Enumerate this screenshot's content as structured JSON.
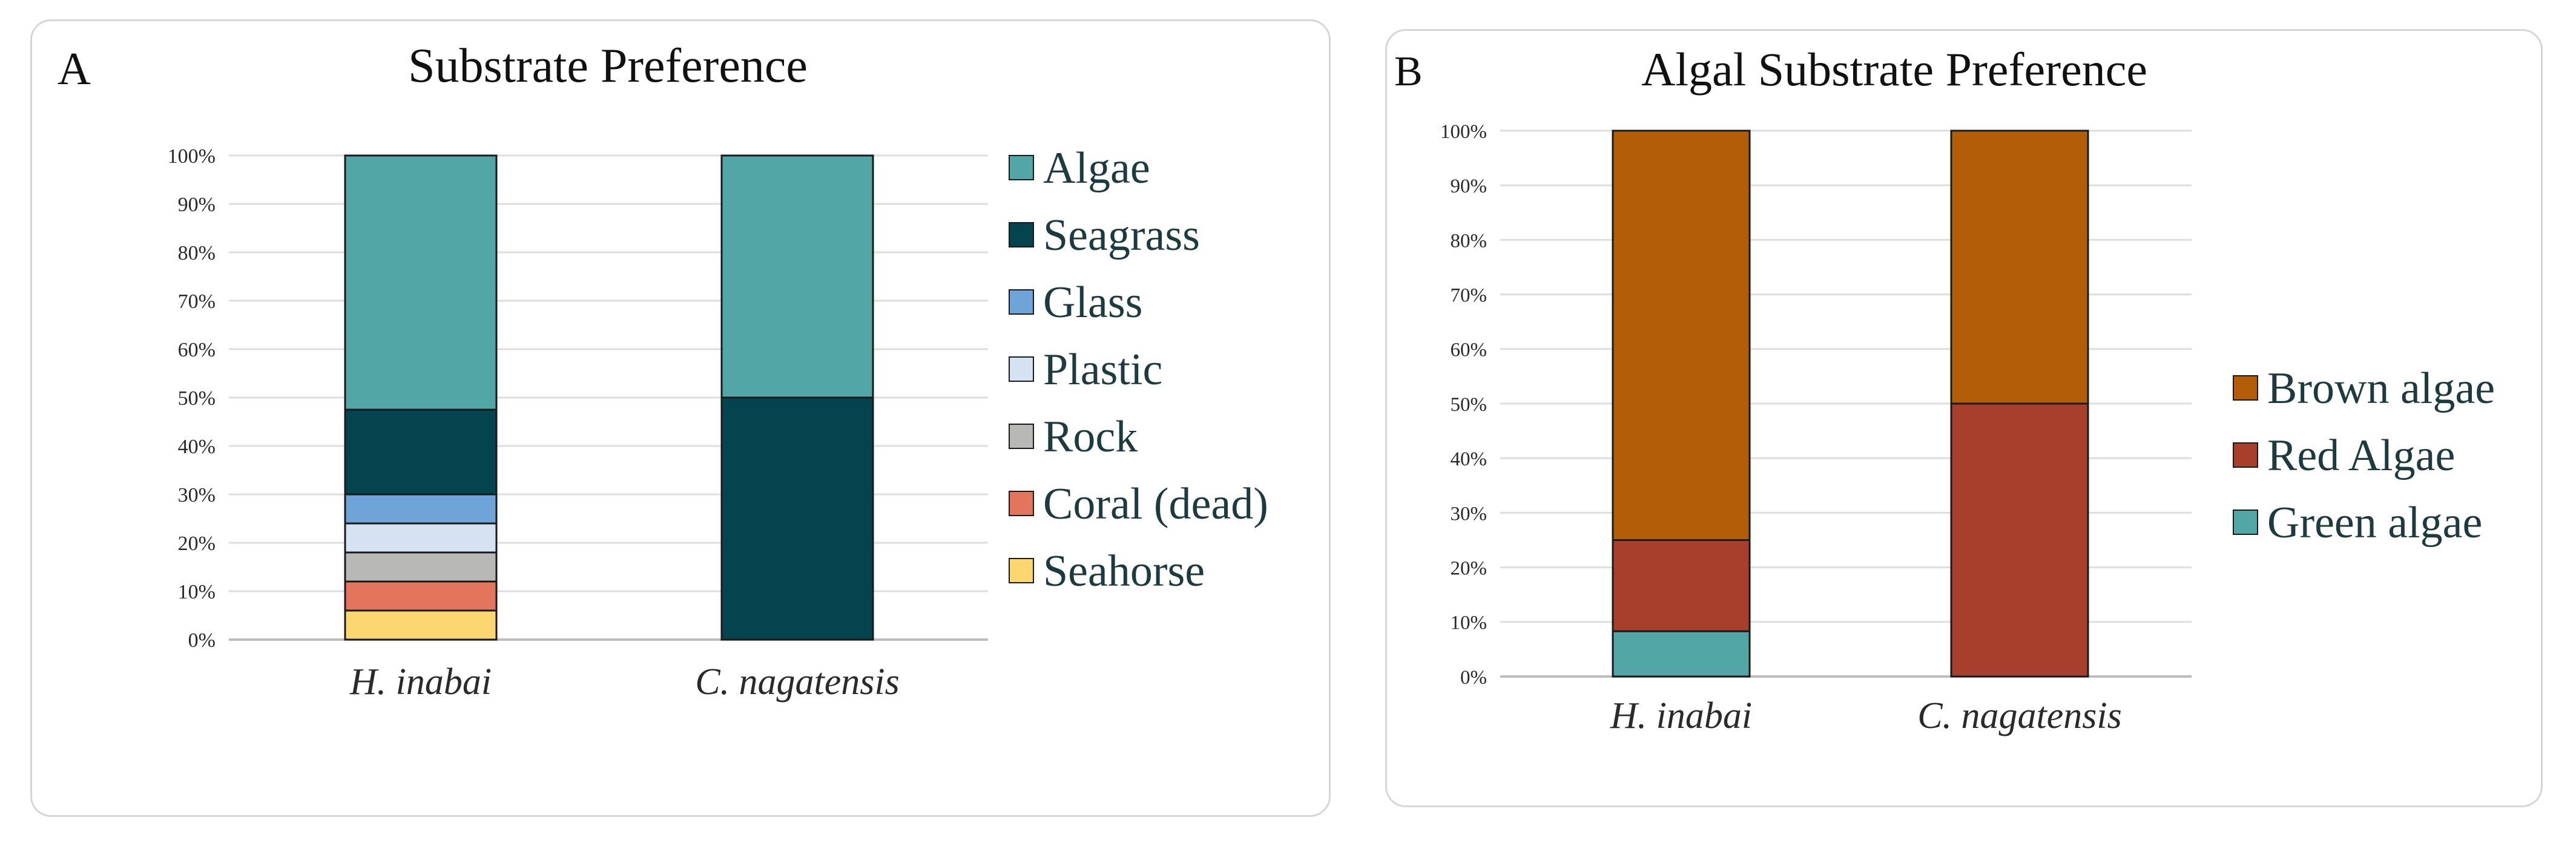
{
  "chart_data": [
    {
      "panel_label": "A",
      "type": "bar",
      "stacked": true,
      "title": "Substrate Preference",
      "xlabel": "",
      "ylabel": "",
      "ylim": [
        0,
        100
      ],
      "yticks": [
        "0%",
        "10%",
        "20%",
        "30%",
        "40%",
        "50%",
        "60%",
        "70%",
        "80%",
        "90%",
        "100%"
      ],
      "categories": [
        "H. inabai",
        "C. nagatensis"
      ],
      "grid": true,
      "legend_position": "right",
      "series": [
        {
          "name": "Seahorse",
          "color": "#fcd771",
          "values": [
            6,
            0
          ]
        },
        {
          "name": "Coral (dead)",
          "color": "#e2755b",
          "values": [
            6,
            0
          ]
        },
        {
          "name": "Rock",
          "color": "#b8b8b6",
          "values": [
            6,
            0
          ]
        },
        {
          "name": "Plastic",
          "color": "#d4e2f1",
          "values": [
            6,
            0
          ]
        },
        {
          "name": "Glass",
          "color": "#6fa4d8",
          "values": [
            6,
            0
          ]
        },
        {
          "name": "Seagrass",
          "color": "#03444f",
          "values": [
            17.5,
            50
          ]
        },
        {
          "name": "Algae",
          "color": "#52a6a5",
          "values": [
            52.5,
            50
          ]
        }
      ],
      "legend_order": [
        "Algae",
        "Seagrass",
        "Glass",
        "Plastic",
        "Rock",
        "Coral (dead)",
        "Seahorse"
      ]
    },
    {
      "panel_label": "B",
      "type": "bar",
      "stacked": true,
      "title": "Algal Substrate Preference",
      "xlabel": "",
      "ylabel": "",
      "ylim": [
        0,
        100
      ],
      "yticks": [
        "0%",
        "10%",
        "20%",
        "30%",
        "40%",
        "50%",
        "60%",
        "70%",
        "80%",
        "90%",
        "100%"
      ],
      "categories": [
        "H. inabai",
        "C. nagatensis"
      ],
      "grid": true,
      "legend_position": "right",
      "series": [
        {
          "name": "Green algae",
          "color": "#52a6a5",
          "values": [
            8.3,
            0
          ]
        },
        {
          "name": "Red Algae",
          "color": "#a83f2c",
          "values": [
            16.7,
            50
          ]
        },
        {
          "name": "Brown algae",
          "color": "#b35d09",
          "values": [
            75,
            50
          ]
        }
      ],
      "legend_order": [
        "Brown algae",
        "Red Algae",
        "Green algae"
      ]
    }
  ]
}
